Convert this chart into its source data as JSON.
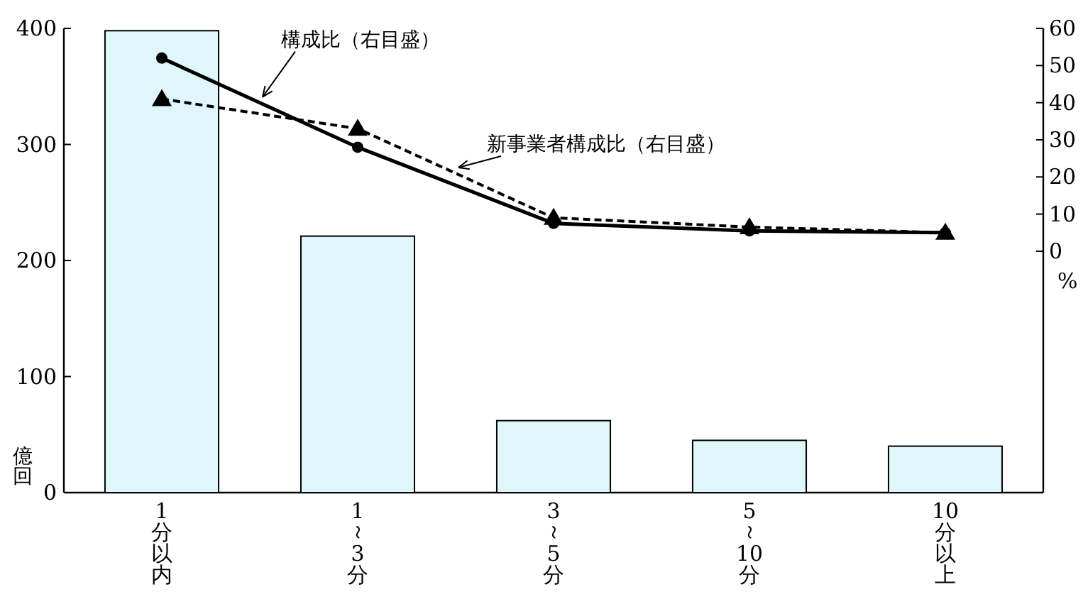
{
  "chart_data": {
    "type": "bar",
    "categories": [
      "1分以内",
      "1～3分",
      "3～5分",
      "5～10分",
      "10分以上"
    ],
    "ylabel": "億回",
    "y2label": "%",
    "ylim": [
      0,
      400
    ],
    "yticks": [
      0,
      100,
      200,
      300,
      400
    ],
    "y2lim": [
      -65,
      60
    ],
    "y2ticks": [
      0,
      10,
      20,
      30,
      40,
      50,
      60
    ],
    "series": [
      {
        "color": "#dff6fb",
        "values": [
          398,
          221,
          62,
          45,
          40
        ]
      },
      {
        "type": "line",
        "axis": "y2",
        "name": "構成比（右目盛）",
        "color": "#000000",
        "marker": "circle",
        "line_style": "solid",
        "values": [
          52,
          28,
          7.5,
          5.5,
          5
        ]
      },
      {
        "type": "line",
        "axis": "y2",
        "name": "新事業者構成比（右目盛）",
        "color": "#000000",
        "marker": "triangle",
        "line_style": "dashed",
        "values": [
          41,
          33,
          9,
          6.5,
          5
        ]
      }
    ]
  }
}
